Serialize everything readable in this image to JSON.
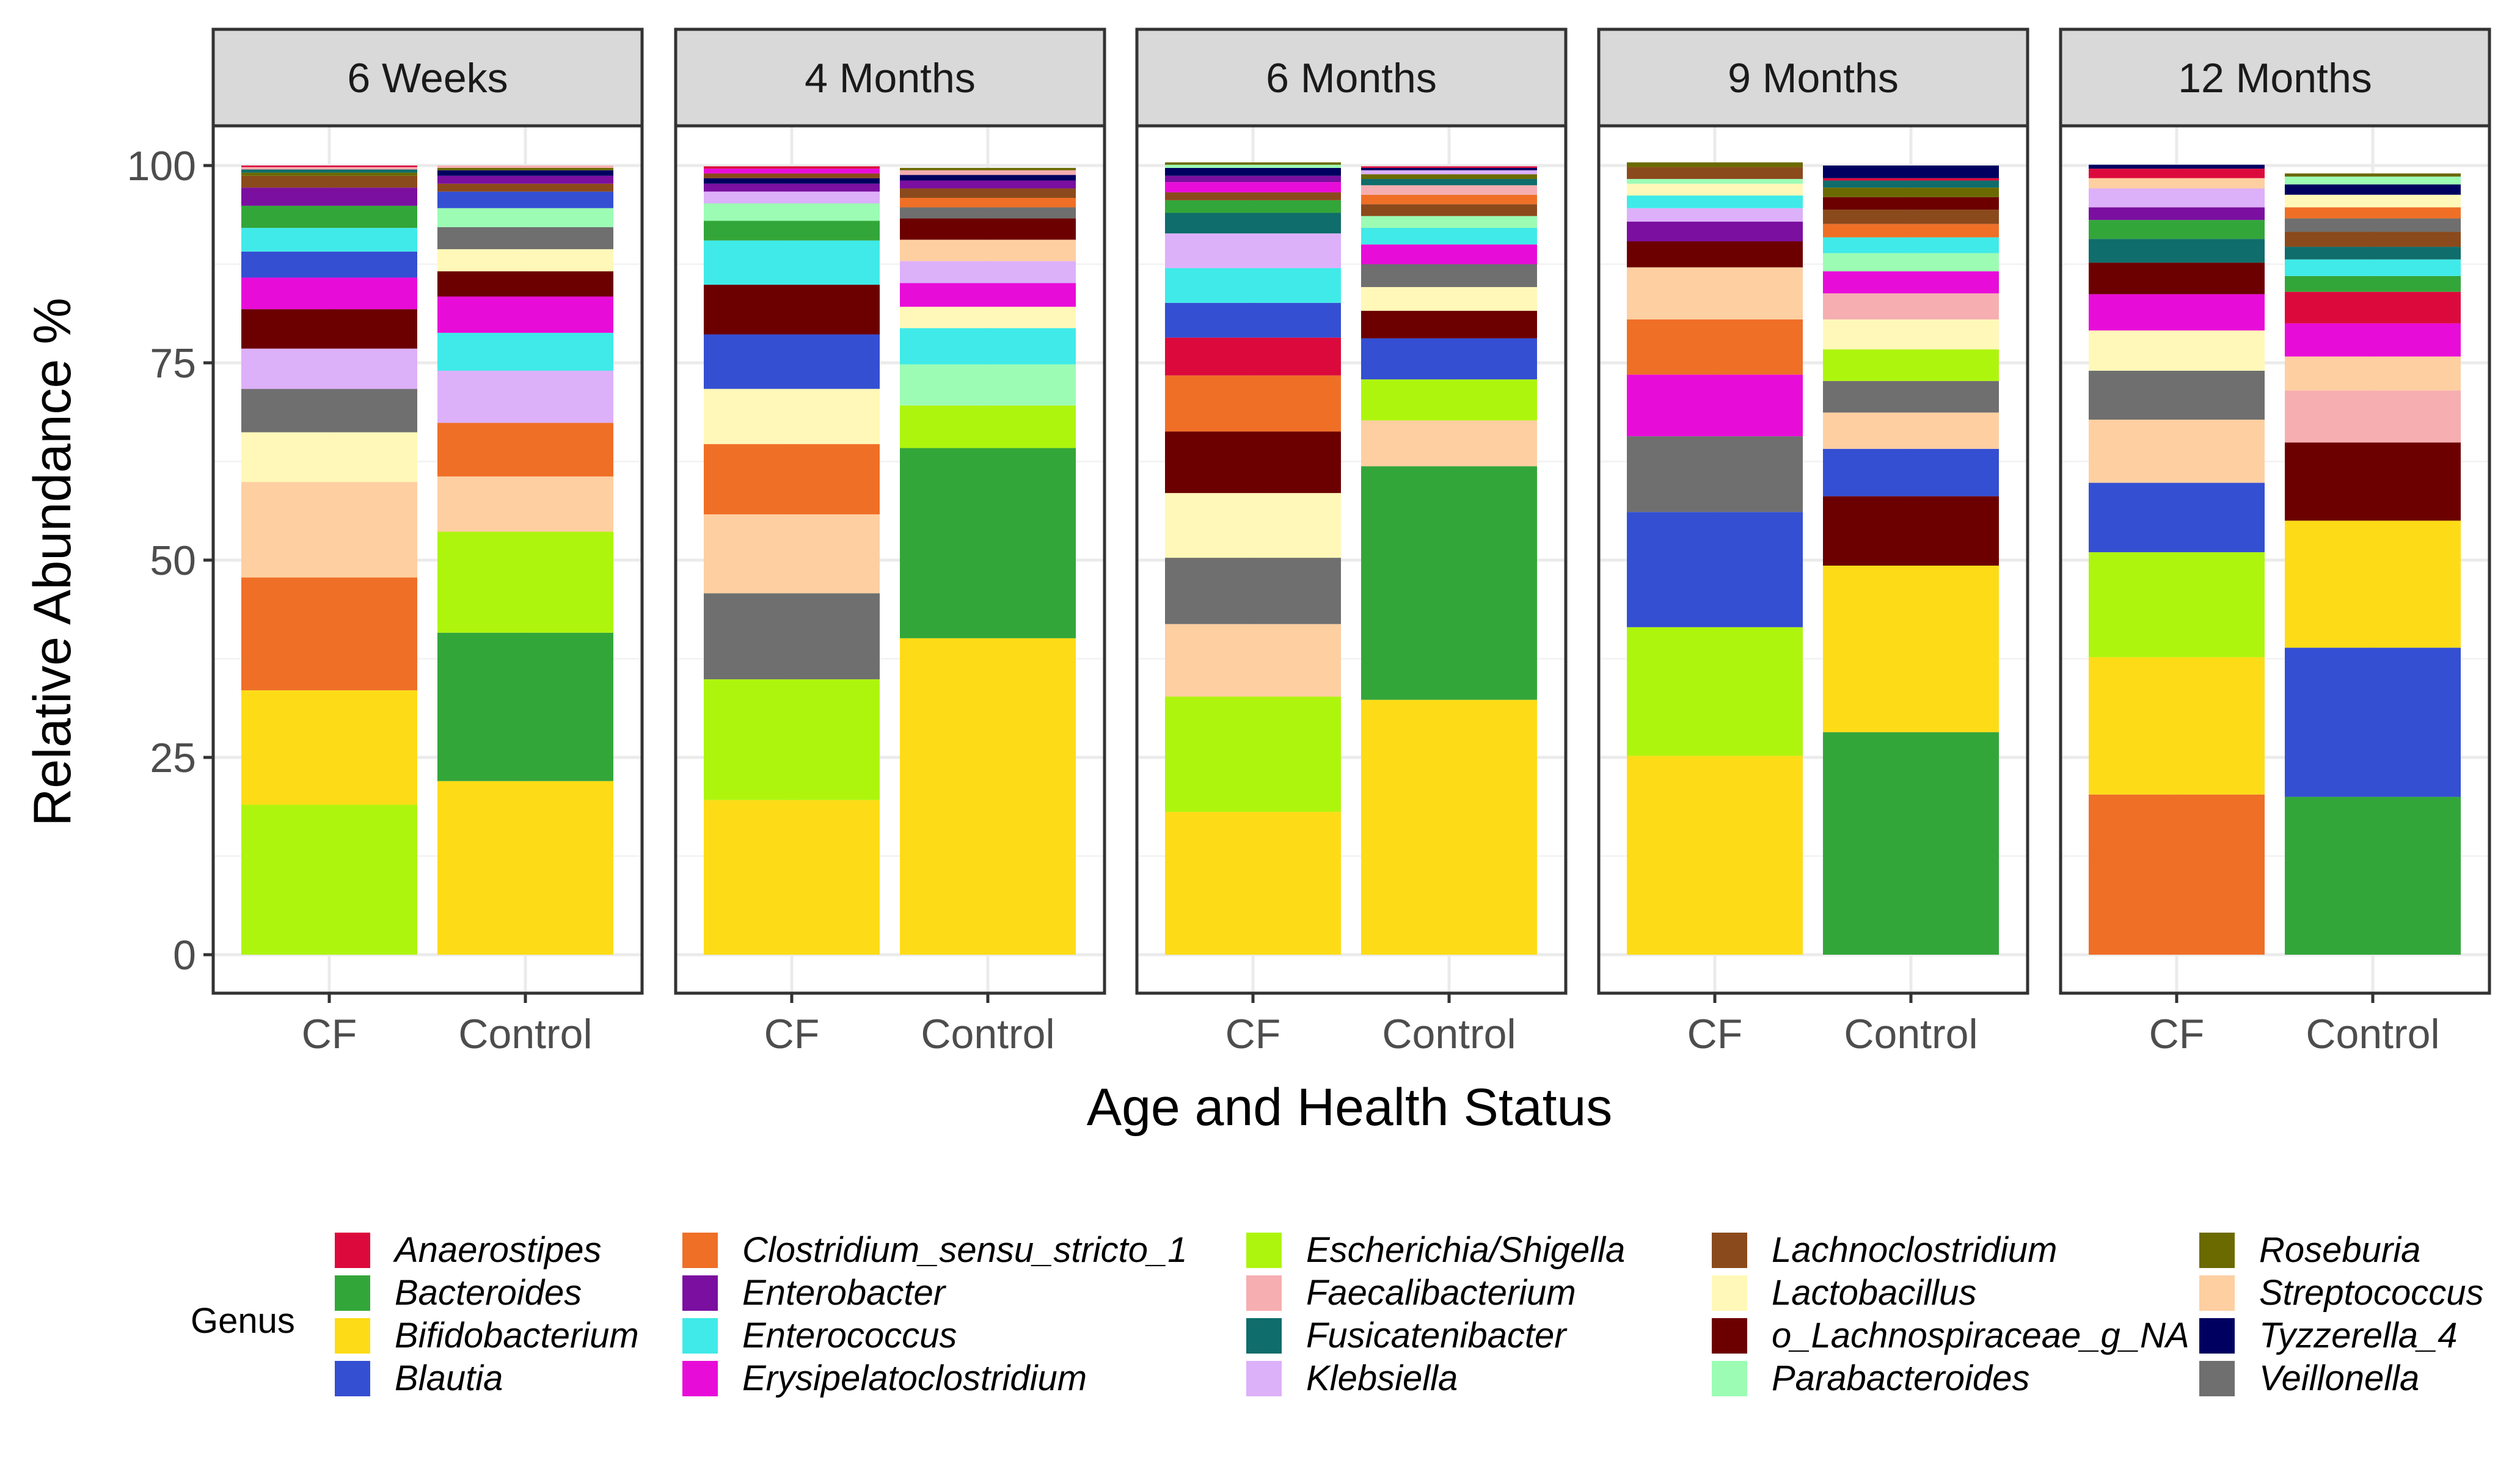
{
  "chart_data": {
    "type": "bar",
    "stacked": true,
    "faceted": true,
    "xlabel": "Age and Health Status",
    "ylabel": "Relative Abundance %",
    "ylim": [
      0,
      110
    ],
    "y_ticks": [
      "0",
      "25",
      "50",
      "75",
      "100"
    ],
    "grid": true,
    "legend_title": "Genus",
    "legend_position": "bottom",
    "facets": [
      "6 Weeks",
      "4 Months",
      "6 Months",
      "9 Months",
      "12 Months"
    ],
    "categories": [
      "CF",
      "Control"
    ],
    "genera": [
      {
        "name": "Anaerostipes",
        "color": "#DC0A3C"
      },
      {
        "name": "Bacteroides",
        "color": "#33A63A"
      },
      {
        "name": "Bifidobacterium",
        "color": "#FDDC17"
      },
      {
        "name": "Blautia",
        "color": "#344FD2"
      },
      {
        "name": "Clostridium_sensu_stricto_1",
        "color": "#EF6F27"
      },
      {
        "name": "Enterobacter",
        "color": "#7A0FA0"
      },
      {
        "name": "Enterococcus",
        "color": "#40EAE8"
      },
      {
        "name": "Erysipelatoclostridium",
        "color": "#E80CD9"
      },
      {
        "name": "Escherichia/Shigella",
        "color": "#AEF50E"
      },
      {
        "name": "Faecalibacterium",
        "color": "#F6AEB1"
      },
      {
        "name": "Fusicatenibacter",
        "color": "#0F6D6B"
      },
      {
        "name": "Klebsiella",
        "color": "#DDB0FA"
      },
      {
        "name": "Lachnoclostridium",
        "color": "#8B4A1C"
      },
      {
        "name": "Lactobacillus",
        "color": "#FFF8B8"
      },
      {
        "name": "o_Lachnospiraceae_g_NA",
        "color": "#6C0000"
      },
      {
        "name": "Parabacteroides",
        "color": "#9CFCB4"
      },
      {
        "name": "Roseburia",
        "color": "#6B6A00"
      },
      {
        "name": "Streptococcus",
        "color": "#FECFA1"
      },
      {
        "name": "Tyzzerella_4",
        "color": "#000060"
      },
      {
        "name": "Veillonella",
        "color": "#6F6F6F"
      }
    ],
    "stacks": [
      [
        [
          [
            "Escherichia/Shigella",
            19
          ],
          [
            "Bifidobacterium",
            14.5
          ],
          [
            "Clostridium_sensu_stricto_1",
            14.3
          ],
          [
            "Streptococcus",
            12.1
          ],
          [
            "Lactobacillus",
            6.3
          ],
          [
            "Veillonella",
            5.5
          ],
          [
            "Klebsiella",
            5.1
          ],
          [
            "o_Lachnospiraceae_g_NA",
            5
          ],
          [
            "Erysipelatoclostridium",
            4
          ],
          [
            "Blautia",
            3.3
          ],
          [
            "Enterococcus",
            3
          ],
          [
            "Bacteroides",
            2.8
          ],
          [
            "Enterobacter",
            2.3
          ],
          [
            "Lachnoclostridium",
            1.5
          ],
          [
            "Roseburia",
            0.4
          ],
          [
            "Fusicatenibacter",
            0.4
          ],
          [
            "Faecalibacterium",
            0.3
          ],
          [
            "Anaerostipes",
            0.2
          ]
        ],
        [
          [
            "Bifidobacterium",
            22
          ],
          [
            "Bacteroides",
            18.8
          ],
          [
            "Escherichia/Shigella",
            12.8
          ],
          [
            "Streptococcus",
            7
          ],
          [
            "Clostridium_sensu_stricto_1",
            6.8
          ],
          [
            "Klebsiella",
            6.6
          ],
          [
            "Enterococcus",
            4.8
          ],
          [
            "Erysipelatoclostridium",
            4.6
          ],
          [
            "o_Lachnospiraceae_g_NA",
            3.2
          ],
          [
            "Lactobacillus",
            2.8
          ],
          [
            "Veillonella",
            2.8
          ],
          [
            "Parabacteroides",
            2.4
          ],
          [
            "Blautia",
            2.1
          ],
          [
            "Lachnoclostridium",
            1
          ],
          [
            "Enterobacter",
            1
          ],
          [
            "Tyzzerella_4",
            0.7
          ],
          [
            "Roseburia",
            0.3
          ],
          [
            "Faecalibacterium",
            0.3
          ]
        ]
      ],
      [
        [
          [
            "Bifidobacterium",
            19.6
          ],
          [
            "Escherichia/Shigella",
            15.3
          ],
          [
            "Veillonella",
            10.9
          ],
          [
            "Streptococcus",
            10
          ],
          [
            "Clostridium_sensu_stricto_1",
            8.9
          ],
          [
            "Lactobacillus",
            7
          ],
          [
            "Blautia",
            6.9
          ],
          [
            "o_Lachnospiraceae_g_NA",
            6.3
          ],
          [
            "Enterococcus",
            5.6
          ],
          [
            "Bacteroides",
            2.5
          ],
          [
            "Parabacteroides",
            2.2
          ],
          [
            "Klebsiella",
            1.5
          ],
          [
            "Enterobacter",
            1
          ],
          [
            "Tyzzerella_4",
            0.7
          ],
          [
            "Lachnoclostridium",
            0.6
          ],
          [
            "Erysipelatoclostridium",
            0.6
          ],
          [
            "Anaerostipes",
            0.3
          ]
        ],
        [
          [
            "Bifidobacterium",
            40.1
          ],
          [
            "Bacteroides",
            24.1
          ],
          [
            "Escherichia/Shigella",
            5.4
          ],
          [
            "Parabacteroides",
            5.2
          ],
          [
            "Enterococcus",
            4.6
          ],
          [
            "Lactobacillus",
            2.7
          ],
          [
            "Erysipelatoclostridium",
            3
          ],
          [
            "Klebsiella",
            2.8
          ],
          [
            "Streptococcus",
            2.7
          ],
          [
            "o_Lachnospiraceae_g_NA",
            2.7
          ],
          [
            "Veillonella",
            1.4
          ],
          [
            "Clostridium_sensu_stricto_1",
            1.2
          ],
          [
            "Lachnoclostridium",
            1.2
          ],
          [
            "Enterobacter",
            1
          ],
          [
            "Tyzzerella_4",
            0.7
          ],
          [
            "Faecalibacterium",
            0.6
          ],
          [
            "Roseburia",
            0.3
          ]
        ]
      ],
      [
        [
          [
            "Bifidobacterium",
            18.1
          ],
          [
            "Escherichia/Shigella",
            14.6
          ],
          [
            "Streptococcus",
            9.2
          ],
          [
            "Veillonella",
            8.4
          ],
          [
            "Lactobacillus",
            8.2
          ],
          [
            "o_Lachnospiraceae_g_NA",
            7.8
          ],
          [
            "Clostridium_sensu_stricto_1",
            7.1
          ],
          [
            "Anaerostipes",
            4.8
          ],
          [
            "Blautia",
            4.4
          ],
          [
            "Enterococcus",
            4.4
          ],
          [
            "Klebsiella",
            4.4
          ],
          [
            "Fusicatenibacter",
            2.6
          ],
          [
            "Bacteroides",
            1.6
          ],
          [
            "Lachnoclostridium",
            1
          ],
          [
            "Erysipelatoclostridium",
            1.3
          ],
          [
            "Enterobacter",
            0.8
          ],
          [
            "Tyzzerella_4",
            1
          ],
          [
            "Parabacteroides",
            0.4
          ],
          [
            "Roseburia",
            0.3
          ]
        ],
        [
          [
            "Bifidobacterium",
            32.3
          ],
          [
            "Bacteroides",
            29.6
          ],
          [
            "Streptococcus",
            5.8
          ],
          [
            "Escherichia/Shigella",
            5.2
          ],
          [
            "Blautia",
            5.2
          ],
          [
            "o_Lachnospiraceae_g_NA",
            3.5
          ],
          [
            "Lactobacillus",
            3
          ],
          [
            "Veillonella",
            2.9
          ],
          [
            "Erysipelatoclostridium",
            2.5
          ],
          [
            "Enterococcus",
            2.1
          ],
          [
            "Parabacteroides",
            1.5
          ],
          [
            "Lachnoclostridium",
            1.5
          ],
          [
            "Clostridium_sensu_stricto_1",
            1.2
          ],
          [
            "Faecalibacterium",
            1.2
          ],
          [
            "Fusicatenibacter",
            0.8
          ],
          [
            "Roseburia",
            0.6
          ],
          [
            "Klebsiella",
            0.5
          ],
          [
            "Tyzzerella_4",
            0.3
          ],
          [
            "Anaerostipes",
            0.2
          ]
        ]
      ],
      [
        [
          [
            "Bifidobacterium",
            25.2
          ],
          [
            "Escherichia/Shigella",
            16.3
          ],
          [
            "Blautia",
            14.6
          ],
          [
            "Veillonella",
            9.6
          ],
          [
            "Erysipelatoclostridium",
            7.8
          ],
          [
            "Clostridium_sensu_stricto_1",
            7
          ],
          [
            "Streptococcus",
            6.6
          ],
          [
            "o_Lachnospiraceae_g_NA",
            3.3
          ],
          [
            "Enterobacter",
            2.5
          ],
          [
            "Klebsiella",
            1.7
          ],
          [
            "Enterococcus",
            1.6
          ],
          [
            "Lactobacillus",
            1.5
          ],
          [
            "Parabacteroides",
            0.6
          ],
          [
            "Lachnoclostridium",
            1.5
          ],
          [
            "Roseburia",
            0.6
          ]
        ],
        [
          [
            "Bacteroides",
            28.2
          ],
          [
            "Bifidobacterium",
            21.1
          ],
          [
            "o_Lachnospiraceae_g_NA",
            8.8
          ],
          [
            "Blautia",
            6
          ],
          [
            "Streptococcus",
            4.6
          ],
          [
            "Veillonella",
            4
          ],
          [
            "Escherichia/Shigella",
            4
          ],
          [
            "Lactobacillus",
            3.8
          ],
          [
            "Faecalibacterium",
            3.3
          ],
          [
            "Erysipelatoclostridium",
            2.8
          ],
          [
            "Parabacteroides",
            2.3
          ],
          [
            "Enterococcus",
            2
          ],
          [
            "Clostridium_sensu_stricto_1",
            1.7
          ],
          [
            "Lachnoclostridium",
            1.8
          ],
          [
            "o_Lachnospiraceae_g_NA",
            1.6
          ],
          [
            "Roseburia",
            1.2
          ],
          [
            "Fusicatenibacter",
            0.9
          ],
          [
            "Anaerostipes",
            0.3
          ],
          [
            "Tyzzerella_4",
            1.6
          ]
        ]
      ],
      [
        [
          [
            "Clostridium_sensu_stricto_1",
            20.3
          ],
          [
            "Bifidobacterium",
            17.4
          ],
          [
            "Escherichia/Shigella",
            13.3
          ],
          [
            "Blautia",
            8.8
          ],
          [
            "Streptococcus",
            8
          ],
          [
            "Veillonella",
            6.2
          ],
          [
            "Lactobacillus",
            5.1
          ],
          [
            "Erysipelatoclostridium",
            4.6
          ],
          [
            "o_Lachnospiraceae_g_NA",
            4
          ],
          [
            "Fusicatenibacter",
            3
          ],
          [
            "Bacteroides",
            2.4
          ],
          [
            "Enterobacter",
            1.6
          ],
          [
            "Klebsiella",
            2.4
          ],
          [
            "Streptococcus",
            1.3
          ],
          [
            "Anaerostipes",
            1.2
          ],
          [
            "Tyzzerella_4",
            0.5
          ]
        ],
        [
          [
            "Bacteroides",
            20
          ],
          [
            "Blautia",
            18.9
          ],
          [
            "Bifidobacterium",
            16.1
          ],
          [
            "o_Lachnospiraceae_g_NA",
            9.9
          ],
          [
            "Faecalibacterium",
            6.6
          ],
          [
            "Streptococcus",
            4.3
          ],
          [
            "Erysipelatoclostridium",
            4.2
          ],
          [
            "Anaerostipes",
            4
          ],
          [
            "Bacteroides",
            2
          ],
          [
            "Enterococcus",
            2.1
          ],
          [
            "Fusicatenibacter",
            1.6
          ],
          [
            "Lachnoclostridium",
            1.9
          ],
          [
            "Veillonella",
            1.7
          ],
          [
            "Clostridium_sensu_stricto_1",
            1.4
          ],
          [
            "Lactobacillus",
            1.6
          ],
          [
            "Tyzzerella_4",
            1.3
          ],
          [
            "Parabacteroides",
            1
          ],
          [
            "Roseburia",
            0.4
          ]
        ]
      ]
    ]
  }
}
